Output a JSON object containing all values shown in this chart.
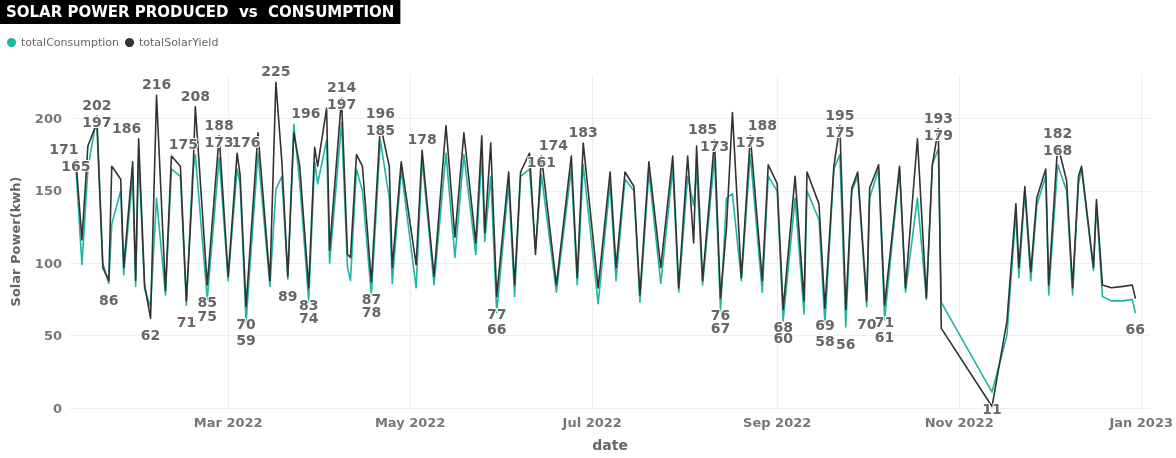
{
  "chart_data": {
    "type": "line",
    "title": "SOLAR POWER PRODUCED  vs  CONSUMPTION",
    "xlabel": "date",
    "ylabel": "Solar Power(kwh)",
    "legend": "top left",
    "grid": true,
    "marker": "none",
    "line_style": "solid",
    "xlim": [
      "2022-01-07",
      "2023-01-04"
    ],
    "xticks": [
      {
        "value": "2022-03-01",
        "label": "Mar 2022"
      },
      {
        "value": "2022-05-01",
        "label": "May 2022"
      },
      {
        "value": "2022-07-01",
        "label": "Jul 2022"
      },
      {
        "value": "2022-09-01",
        "label": "Sep 2022"
      },
      {
        "value": "2022-11-01",
        "label": "Nov 2022"
      },
      {
        "value": "2023-01-01",
        "label": "Jan 2023"
      }
    ],
    "ylim": [
      0,
      230
    ],
    "yticks": [
      0,
      50,
      100,
      150,
      200
    ],
    "x": [
      "2022-01-09",
      "2022-01-11",
      "2022-01-13",
      "2022-01-16",
      "2022-01-18",
      "2022-01-20",
      "2022-01-21",
      "2022-01-24",
      "2022-01-25",
      "2022-01-28",
      "2022-01-29",
      "2022-01-30",
      "2022-02-01",
      "2022-02-03",
      "2022-02-05",
      "2022-02-08",
      "2022-02-10",
      "2022-02-13",
      "2022-02-15",
      "2022-02-17",
      "2022-02-18",
      "2022-02-22",
      "2022-02-26",
      "2022-03-01",
      "2022-03-04",
      "2022-03-05",
      "2022-03-07",
      "2022-03-11",
      "2022-03-15",
      "2022-03-17",
      "2022-03-19",
      "2022-03-21",
      "2022-03-23",
      "2022-03-25",
      "2022-03-28",
      "2022-03-30",
      "2022-03-31",
      "2022-04-03",
      "2022-04-04",
      "2022-04-08",
      "2022-04-10",
      "2022-04-11",
      "2022-04-13",
      "2022-04-15",
      "2022-04-18",
      "2022-04-21",
      "2022-04-24",
      "2022-04-25",
      "2022-04-28",
      "2022-05-03",
      "2022-05-05",
      "2022-05-09",
      "2022-05-13",
      "2022-05-16",
      "2022-05-19",
      "2022-05-23",
      "2022-05-25",
      "2022-05-26",
      "2022-05-28",
      "2022-05-30",
      "2022-06-03",
      "2022-06-05",
      "2022-06-07",
      "2022-06-10",
      "2022-06-12",
      "2022-06-14",
      "2022-06-19",
      "2022-06-24",
      "2022-06-26",
      "2022-06-28",
      "2022-07-03",
      "2022-07-07",
      "2022-07-09",
      "2022-07-12",
      "2022-07-15",
      "2022-07-17",
      "2022-07-20",
      "2022-07-24",
      "2022-07-28",
      "2022-07-30",
      "2022-08-02",
      "2022-08-04",
      "2022-08-05",
      "2022-08-07",
      "2022-08-11",
      "2022-08-13",
      "2022-08-15",
      "2022-08-17",
      "2022-08-20",
      "2022-08-23",
      "2022-08-27",
      "2022-08-29",
      "2022-09-01",
      "2022-09-03",
      "2022-09-07",
      "2022-09-10",
      "2022-09-11",
      "2022-09-15",
      "2022-09-17",
      "2022-09-20",
      "2022-09-22",
      "2022-09-24",
      "2022-09-26",
      "2022-09-28",
      "2022-10-01",
      "2022-10-02",
      "2022-10-05",
      "2022-10-07",
      "2022-10-12",
      "2022-10-14",
      "2022-10-18",
      "2022-10-21",
      "2022-10-23",
      "2022-10-25",
      "2022-10-26",
      "2022-11-12",
      "2022-11-17",
      "2022-11-20",
      "2022-11-21",
      "2022-11-23",
      "2022-11-25",
      "2022-11-27",
      "2022-11-30",
      "2022-12-01",
      "2022-12-04",
      "2022-12-07",
      "2022-12-09",
      "2022-12-11",
      "2022-12-12",
      "2022-12-16",
      "2022-12-17",
      "2022-12-19",
      "2022-12-22",
      "2022-12-26",
      "2022-12-29",
      "2022-12-30"
    ],
    "series": [
      {
        "name": "totalConsumption",
        "color": "#1fb5a3",
        "values": [
          165,
          99,
          165,
          202,
          100,
          86,
          127,
          150,
          92,
          160,
          84,
          175,
          82,
          70,
          145,
          78,
          165,
          160,
          71,
          160,
          175,
          75,
          173,
          88,
          165,
          155,
          59,
          176,
          84,
          151,
          160,
          89,
          196,
          155,
          74,
          170,
          155,
          185,
          100,
          197,
          97,
          88,
          165,
          150,
          78,
          185,
          145,
          86,
          165,
          83,
          172,
          85,
          176,
          104,
          175,
          106,
          175,
          115,
          160,
          66,
          155,
          77,
          160,
          165,
          110,
          161,
          80,
          165,
          85,
          168,
          72,
          155,
          88,
          158,
          150,
          73,
          163,
          86,
          165,
          80,
          160,
          140,
          165,
          85,
          173,
          67,
          145,
          148,
          88,
          175,
          80,
          160,
          150,
          60,
          145,
          65,
          150,
          130,
          58,
          165,
          175,
          56,
          150,
          160,
          70,
          145,
          165,
          61,
          165,
          80,
          145,
          75,
          168,
          179,
          73,
          11,
          50,
          135,
          90,
          150,
          88,
          140,
          160,
          78,
          168,
          150,
          78,
          155,
          165,
          95,
          140,
          77,
          74,
          74,
          75,
          66
        ],
        "value_labels": [
          "165",
          null,
          null,
          "202",
          null,
          "86",
          null,
          null,
          null,
          null,
          null,
          null,
          null,
          null,
          null,
          null,
          null,
          null,
          "71",
          null,
          "175",
          "75",
          "173",
          null,
          null,
          null,
          "59",
          "176",
          null,
          null,
          null,
          "89",
          "196",
          null,
          "74",
          null,
          null,
          null,
          null,
          "197",
          null,
          null,
          null,
          null,
          "78",
          "185",
          null,
          null,
          null,
          null,
          null,
          null,
          null,
          null,
          null,
          null,
          null,
          null,
          null,
          "66",
          null,
          null,
          null,
          null,
          null,
          "161",
          null,
          null,
          null,
          null,
          null,
          null,
          null,
          null,
          null,
          null,
          null,
          null,
          null,
          null,
          null,
          null,
          null,
          null,
          "173",
          "67",
          null,
          null,
          null,
          "175",
          null,
          null,
          null,
          "60",
          null,
          null,
          null,
          null,
          "58",
          null,
          "175",
          "56",
          null,
          null,
          "70",
          null,
          null,
          "61",
          null,
          null,
          null,
          null,
          null,
          "179",
          null,
          "11",
          null,
          null,
          null,
          null,
          null,
          null,
          null,
          null,
          "168",
          null,
          null,
          null,
          null,
          null,
          null,
          null,
          null,
          null,
          null,
          "66"
        ]
      },
      {
        "name": "totalSolarYield",
        "color": "#333333",
        "values": [
          171,
          116,
          181,
          197,
          97,
          88,
          167,
          158,
          97,
          170,
          88,
          186,
          85,
          62,
          216,
          81,
          174,
          167,
          74,
          150,
          208,
          85,
          188,
          91,
          176,
          161,
          70,
          190,
          88,
          225,
          170,
          91,
          190,
          167,
          83,
          180,
          167,
          207,
          109,
          214,
          106,
          104,
          175,
          167,
          87,
          196,
          167,
          97,
          170,
          99,
          178,
          91,
          195,
          118,
          190,
          114,
          188,
          121,
          183,
          77,
          163,
          85,
          163,
          176,
          106,
          174,
          85,
          174,
          90,
          183,
          83,
          163,
          97,
          163,
          153,
          78,
          170,
          97,
          174,
          83,
          174,
          114,
          181,
          88,
          185,
          76,
          124,
          204,
          90,
          188,
          88,
          168,
          155,
          68,
          160,
          74,
          163,
          141,
          69,
          167,
          195,
          68,
          152,
          163,
          74,
          152,
          168,
          71,
          167,
          83,
          186,
          76,
          168,
          193,
          55,
          1,
          60,
          141,
          97,
          153,
          94,
          145,
          165,
          85,
          182,
          157,
          83,
          160,
          167,
          97,
          144,
          85,
          83,
          84,
          85,
          76
        ],
        "value_labels": [
          "171",
          null,
          null,
          "197",
          null,
          null,
          null,
          null,
          null,
          null,
          null,
          "186",
          null,
          "62",
          "216",
          null,
          null,
          null,
          null,
          null,
          "208",
          "85",
          "188",
          null,
          null,
          null,
          "70",
          null,
          null,
          "225",
          null,
          null,
          null,
          null,
          "83",
          null,
          null,
          null,
          null,
          "214",
          null,
          null,
          null,
          null,
          "87",
          "196",
          null,
          null,
          null,
          null,
          "178",
          null,
          null,
          null,
          null,
          null,
          null,
          null,
          null,
          "77",
          null,
          null,
          null,
          null,
          null,
          "174",
          null,
          null,
          null,
          "183",
          null,
          null,
          null,
          null,
          null,
          null,
          null,
          null,
          null,
          null,
          null,
          null,
          null,
          null,
          "185",
          "76",
          null,
          null,
          null,
          "188",
          null,
          null,
          null,
          "68",
          null,
          null,
          null,
          null,
          "69",
          null,
          "195",
          null,
          null,
          null,
          null,
          null,
          null,
          "71",
          null,
          null,
          null,
          null,
          null,
          "193",
          null,
          null,
          null,
          null,
          null,
          null,
          null,
          null,
          null,
          null,
          "182",
          null,
          null,
          null,
          null,
          null,
          null,
          null,
          null,
          null,
          null,
          null
        ]
      }
    ]
  }
}
